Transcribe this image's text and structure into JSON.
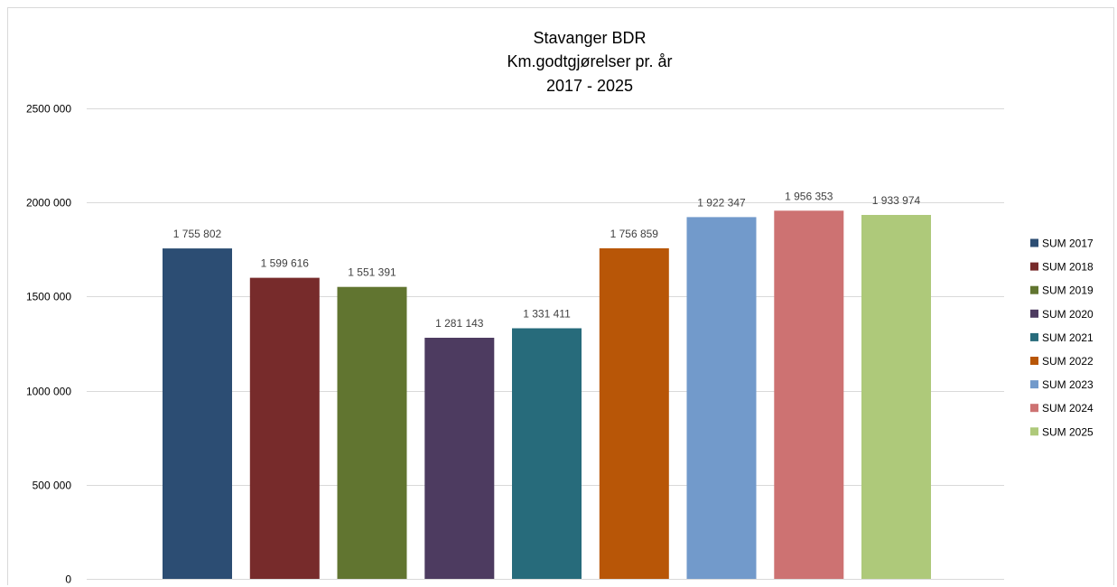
{
  "chart_data": {
    "type": "bar",
    "title_lines": [
      "Stavanger BDR",
      "Km.godtgjørelser pr. år",
      "2017 - 2025"
    ],
    "xlabel": "",
    "ylabel": "",
    "ylim": [
      0,
      2500000
    ],
    "yticks": [
      {
        "value": 0,
        "label": "0"
      },
      {
        "value": 500000,
        "label": "500 000"
      },
      {
        "value": 1000000,
        "label": "1000 000"
      },
      {
        "value": 1500000,
        "label": "1500 000"
      },
      {
        "value": 2000000,
        "label": "2000 000"
      },
      {
        "value": 2500000,
        "label": "2500 000"
      }
    ],
    "grid": true,
    "legend_position": "right",
    "series": [
      {
        "name": "SUM 2017",
        "value": 1755802,
        "label": "1 755 802",
        "color": "#2c4d73"
      },
      {
        "name": "SUM 2018",
        "value": 1599616,
        "label": "1 599 616",
        "color": "#772b2b"
      },
      {
        "name": "SUM 2019",
        "value": 1551391,
        "label": "1 551 391",
        "color": "#617530"
      },
      {
        "name": "SUM 2020",
        "value": 1281143,
        "label": "1 281 143",
        "color": "#4d3b60"
      },
      {
        "name": "SUM 2021",
        "value": 1331411,
        "label": "1 331 411",
        "color": "#276b7b"
      },
      {
        "name": "SUM 2022",
        "value": 1756859,
        "label": "1 756 859",
        "color": "#b85607"
      },
      {
        "name": "SUM 2023",
        "value": 1922347,
        "label": "1 922 347",
        "color": "#729acb"
      },
      {
        "name": "SUM 2024",
        "value": 1956353,
        "label": "1 956 353",
        "color": "#cd7272"
      },
      {
        "name": "SUM 2025",
        "value": 1933974,
        "label": "1 933 974",
        "color": "#aec97a"
      }
    ]
  }
}
